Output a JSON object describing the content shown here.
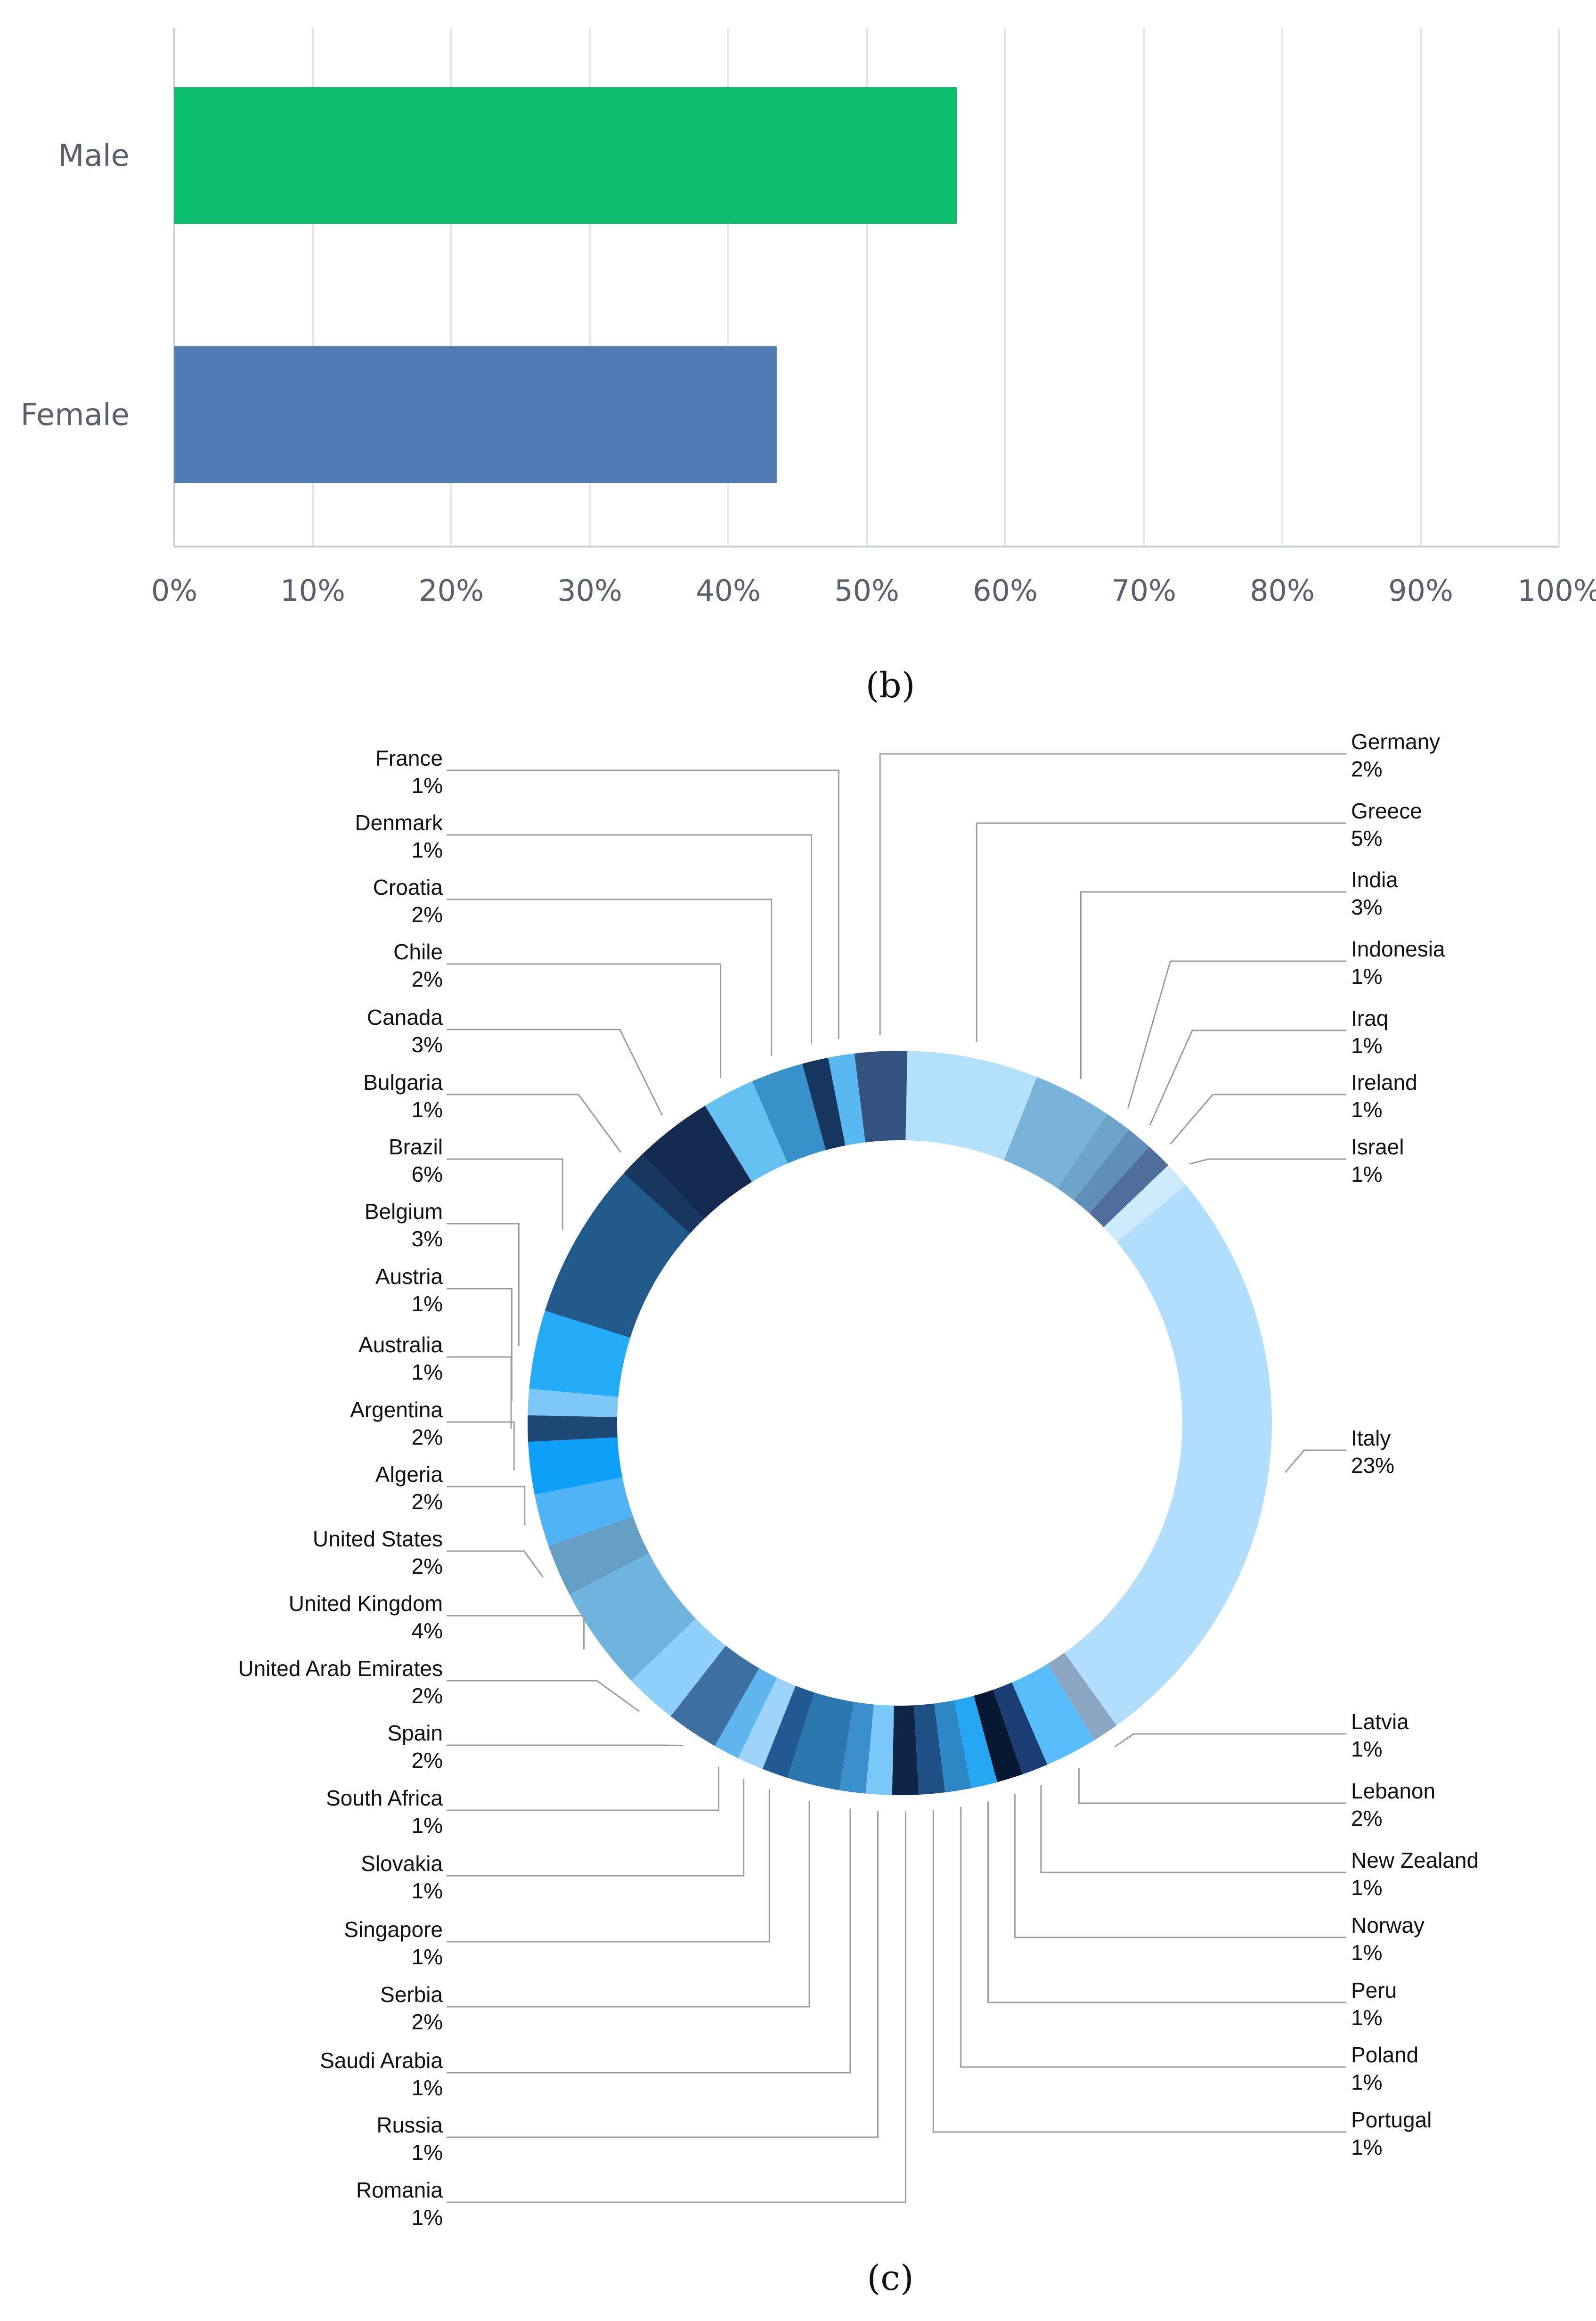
{
  "panel_b_label": "(b)",
  "panel_c_label": "(c)",
  "chart_data": [
    {
      "type": "bar",
      "orientation": "horizontal",
      "categories": [
        "Male",
        "Female"
      ],
      "values": [
        56.5,
        43.5
      ],
      "colors": [
        "#0bbf6e",
        "#507cb6"
      ],
      "xlim": [
        0,
        100
      ],
      "xticks": [
        "0%",
        "10%",
        "20%",
        "30%",
        "40%",
        "50%",
        "60%",
        "70%",
        "80%",
        "90%",
        "100%"
      ],
      "grid": "vertical"
    },
    {
      "type": "pie",
      "style": "donut",
      "slices": [
        {
          "label": "Germany",
          "value_label": "2%",
          "value": 2,
          "color": "#33527e"
        },
        {
          "label": "Greece",
          "value_label": "5%",
          "value": 5,
          "color": "#b3e1fb"
        },
        {
          "label": "India",
          "value_label": "3%",
          "value": 3,
          "color": "#78b4da"
        },
        {
          "label": "Indonesia",
          "value_label": "1%",
          "value": 1,
          "color": "#6ea4c8"
        },
        {
          "label": "Iraq",
          "value_label": "1%",
          "value": 1,
          "color": "#5f8fb8"
        },
        {
          "label": "Ireland",
          "value_label": "1%",
          "value": 1,
          "color": "#4f6e9c"
        },
        {
          "label": "Israel",
          "value_label": "1%",
          "value": 1,
          "color": "#cdebfc"
        },
        {
          "label": "Italy",
          "value_label": "23%",
          "value": 23,
          "color": "#b1defc"
        },
        {
          "label": "Latvia",
          "value_label": "1%",
          "value": 1,
          "color": "#8ba6c3"
        },
        {
          "label": "Lebanon",
          "value_label": "2%",
          "value": 2,
          "color": "#5abdfb"
        },
        {
          "label": "New Zealand",
          "value_label": "1%",
          "value": 1,
          "color": "#1b3f72"
        },
        {
          "label": "Norway",
          "value_label": "1%",
          "value": 1,
          "color": "#061832"
        },
        {
          "label": "Peru",
          "value_label": "1%",
          "value": 1,
          "color": "#26a7f4"
        },
        {
          "label": "Poland",
          "value_label": "1%",
          "value": 1,
          "color": "#2c87c4"
        },
        {
          "label": "Portugal",
          "value_label": "1%",
          "value": 1,
          "color": "#1e4f85"
        },
        {
          "label": "Romania",
          "value_label": "1%",
          "value": 1,
          "color": "#0f2447"
        },
        {
          "label": "Russia",
          "value_label": "1%",
          "value": 1,
          "color": "#79c8f7"
        },
        {
          "label": "Saudi Arabia",
          "value_label": "1%",
          "value": 1,
          "color": "#3a8fcc"
        },
        {
          "label": "Serbia",
          "value_label": "2%",
          "value": 2,
          "color": "#2d77b0"
        },
        {
          "label": "Singapore",
          "value_label": "1%",
          "value": 1,
          "color": "#215a92"
        },
        {
          "label": "Slovakia",
          "value_label": "1%",
          "value": 1,
          "color": "#9ed4f8"
        },
        {
          "label": "South Africa",
          "value_label": "1%",
          "value": 1,
          "color": "#5fb6ee"
        },
        {
          "label": "Spain",
          "value_label": "2%",
          "value": 2,
          "color": "#3d6f9f"
        },
        {
          "label": "United Arab Emirates",
          "value_label": "2%",
          "value": 2,
          "color": "#8fd0fa"
        },
        {
          "label": "United Kingdom",
          "value_label": "4%",
          "value": 4,
          "color": "#6fb4dc"
        },
        {
          "label": "United States",
          "value_label": "2%",
          "value": 2,
          "color": "#649fc6"
        },
        {
          "label": "Algeria",
          "value_label": "2%",
          "value": 2,
          "color": "#4fb3f5"
        },
        {
          "label": "Argentina",
          "value_label": "2%",
          "value": 2,
          "color": "#0ea0f8"
        },
        {
          "label": "Australia",
          "value_label": "1%",
          "value": 1,
          "color": "#1d4876"
        },
        {
          "label": "Austria",
          "value_label": "1%",
          "value": 1,
          "color": "#7dc8f6"
        },
        {
          "label": "Belgium",
          "value_label": "3%",
          "value": 3,
          "color": "#24acf8"
        },
        {
          "label": "Brazil",
          "value_label": "6%",
          "value": 6,
          "color": "#1f5a8a"
        },
        {
          "label": "Bulgaria",
          "value_label": "1%",
          "value": 1,
          "color": "#17375f"
        },
        {
          "label": "Canada",
          "value_label": "3%",
          "value": 3,
          "color": "#152a50"
        },
        {
          "label": "Chile",
          "value_label": "2%",
          "value": 2,
          "color": "#66c1f3"
        },
        {
          "label": "Croatia",
          "value_label": "2%",
          "value": 2,
          "color": "#3891c9"
        },
        {
          "label": "Denmark",
          "value_label": "1%",
          "value": 1,
          "color": "#16365f"
        },
        {
          "label": "France",
          "value_label": "1%",
          "value": 1,
          "color": "#5ab8f0"
        }
      ]
    }
  ]
}
